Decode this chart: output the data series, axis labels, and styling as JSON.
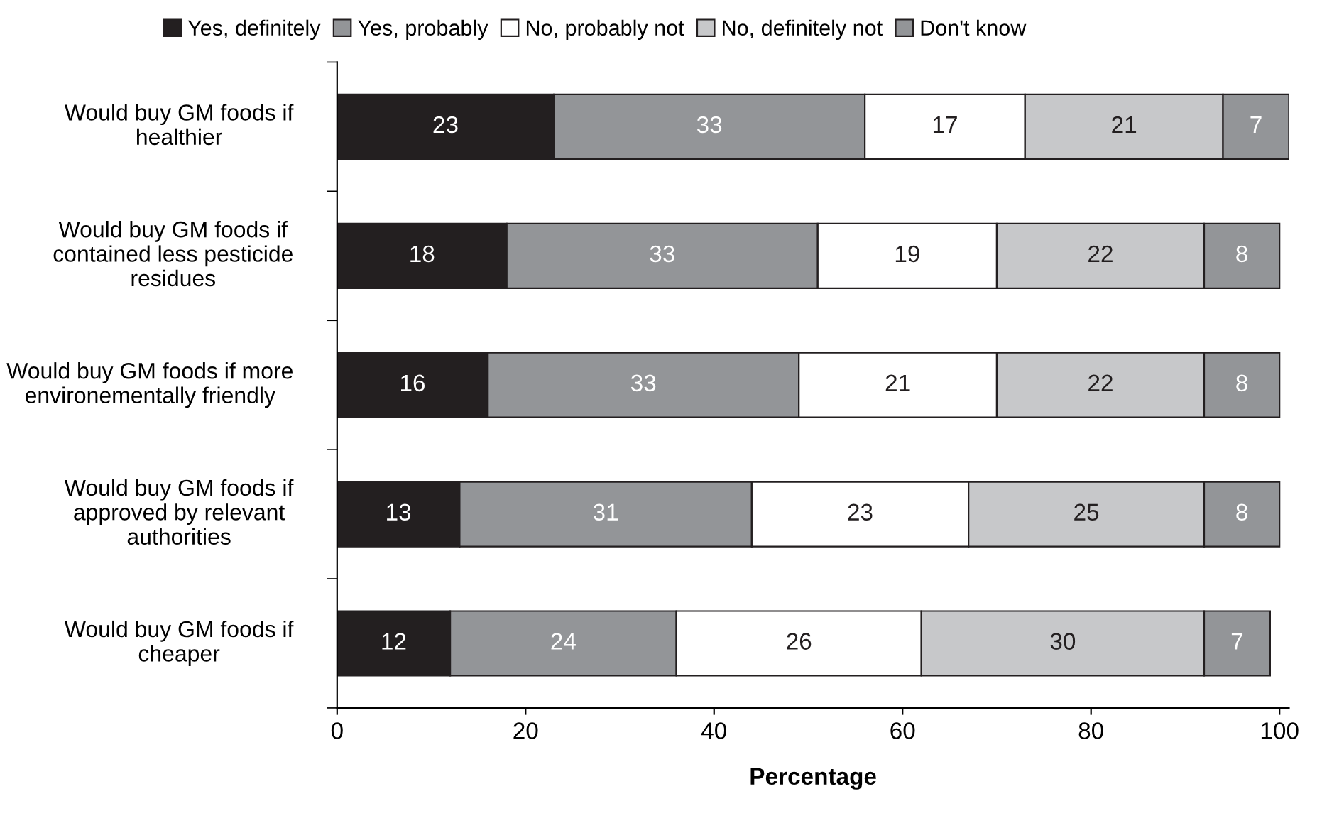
{
  "chart_data": {
    "type": "bar",
    "orientation": "horizontal",
    "stacked": true,
    "xlabel": "Percentage",
    "categories": [
      "Would buy GM foods if healthier",
      "Would buy GM foods if contained less pesticide residues",
      "Would buy GM foods if more environementally friendly",
      "Would buy GM foods if approved by relevant authorities",
      "Would buy GM foods if cheaper"
    ],
    "series": [
      {
        "name": "Yes, definitely",
        "color": "#231f20",
        "values": [
          23,
          18,
          16,
          13,
          12
        ]
      },
      {
        "name": "Yes, probably",
        "color": "#939598",
        "values": [
          33,
          33,
          33,
          31,
          24
        ]
      },
      {
        "name": "No, probably not",
        "color": "#ffffff",
        "values": [
          17,
          19,
          21,
          23,
          26
        ]
      },
      {
        "name": "No, definitely not",
        "color": "#c7c8ca",
        "values": [
          21,
          22,
          22,
          25,
          30
        ]
      },
      {
        "name": "Don't know",
        "color": "#939598",
        "values": [
          7,
          8,
          8,
          8,
          7
        ]
      }
    ],
    "xlim": [
      0,
      101
    ],
    "xticks": [
      0,
      20,
      40,
      60,
      80,
      100
    ],
    "data_labels": true,
    "legend": "top",
    "grid": false
  }
}
